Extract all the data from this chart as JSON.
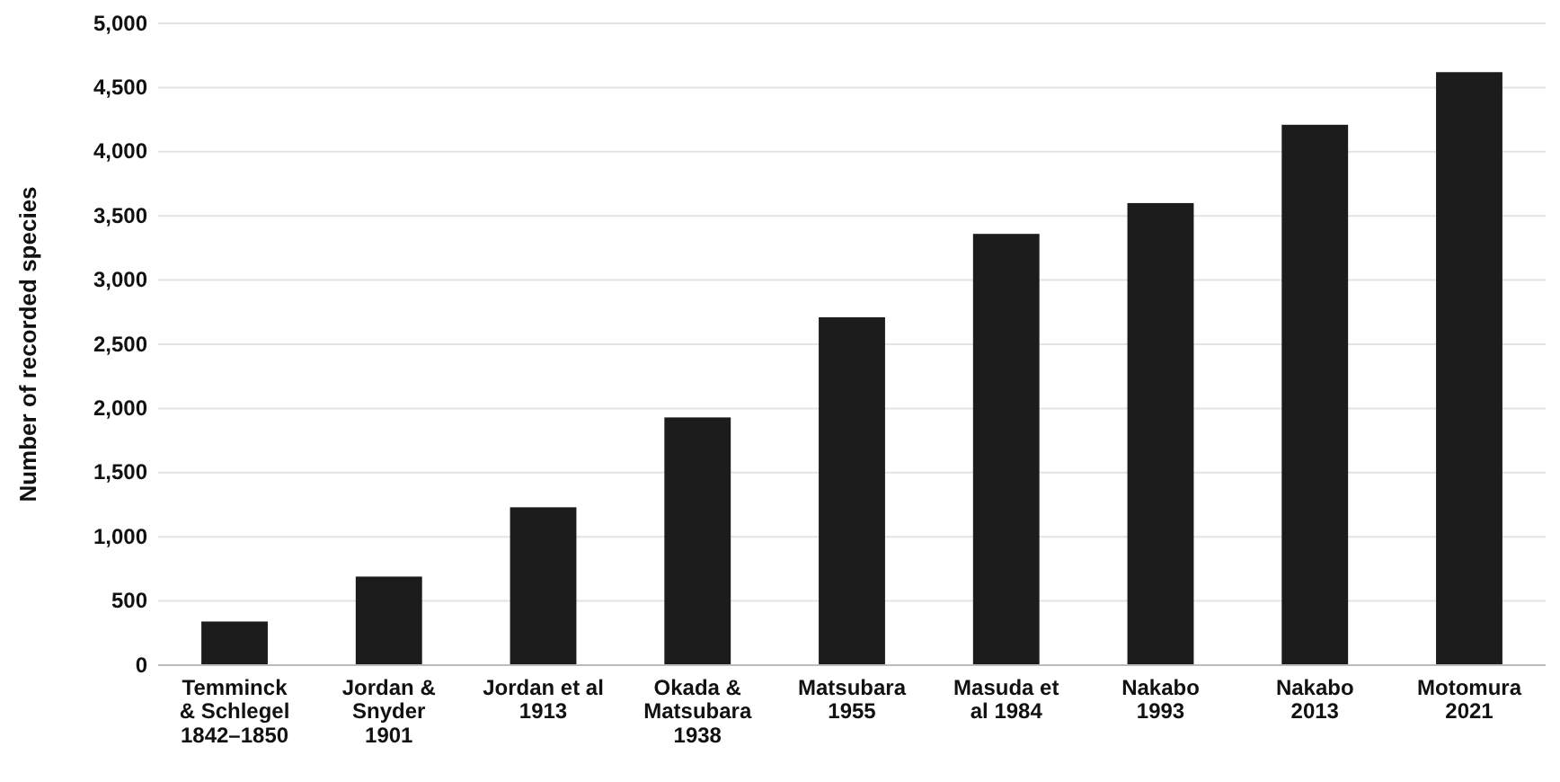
{
  "chart_data": {
    "type": "bar",
    "ylabel": "Number of recorded species",
    "categories": [
      "Temminck & Schlegel 1842–1850",
      "Jordan & Snyder 1901",
      "Jordan et al 1913",
      "Okada & Matsubara 1938",
      "Matsubara 1955",
      "Masuda et al 1984",
      "Nakabo 1993",
      "Nakabo 2013",
      "Motomura 2021"
    ],
    "values": [
      340,
      690,
      1230,
      1930,
      2710,
      3360,
      3600,
      4210,
      4620
    ],
    "color": "#1c1c1c",
    "ylim": [
      0,
      5000
    ],
    "yticks": [
      {
        "value": 0,
        "label": "0"
      },
      {
        "value": 500,
        "label": "500"
      },
      {
        "value": 1000,
        "label": "1,000"
      },
      {
        "value": 1500,
        "label": "1,500"
      },
      {
        "value": 2000,
        "label": "2,000"
      },
      {
        "value": 2500,
        "label": "2,500"
      },
      {
        "value": 3000,
        "label": "3,000"
      },
      {
        "value": 3500,
        "label": "3,500"
      },
      {
        "value": 4000,
        "label": "4,000"
      },
      {
        "value": 4500,
        "label": "4,500"
      },
      {
        "value": 5000,
        "label": "5,000"
      }
    ],
    "grid": "y"
  }
}
